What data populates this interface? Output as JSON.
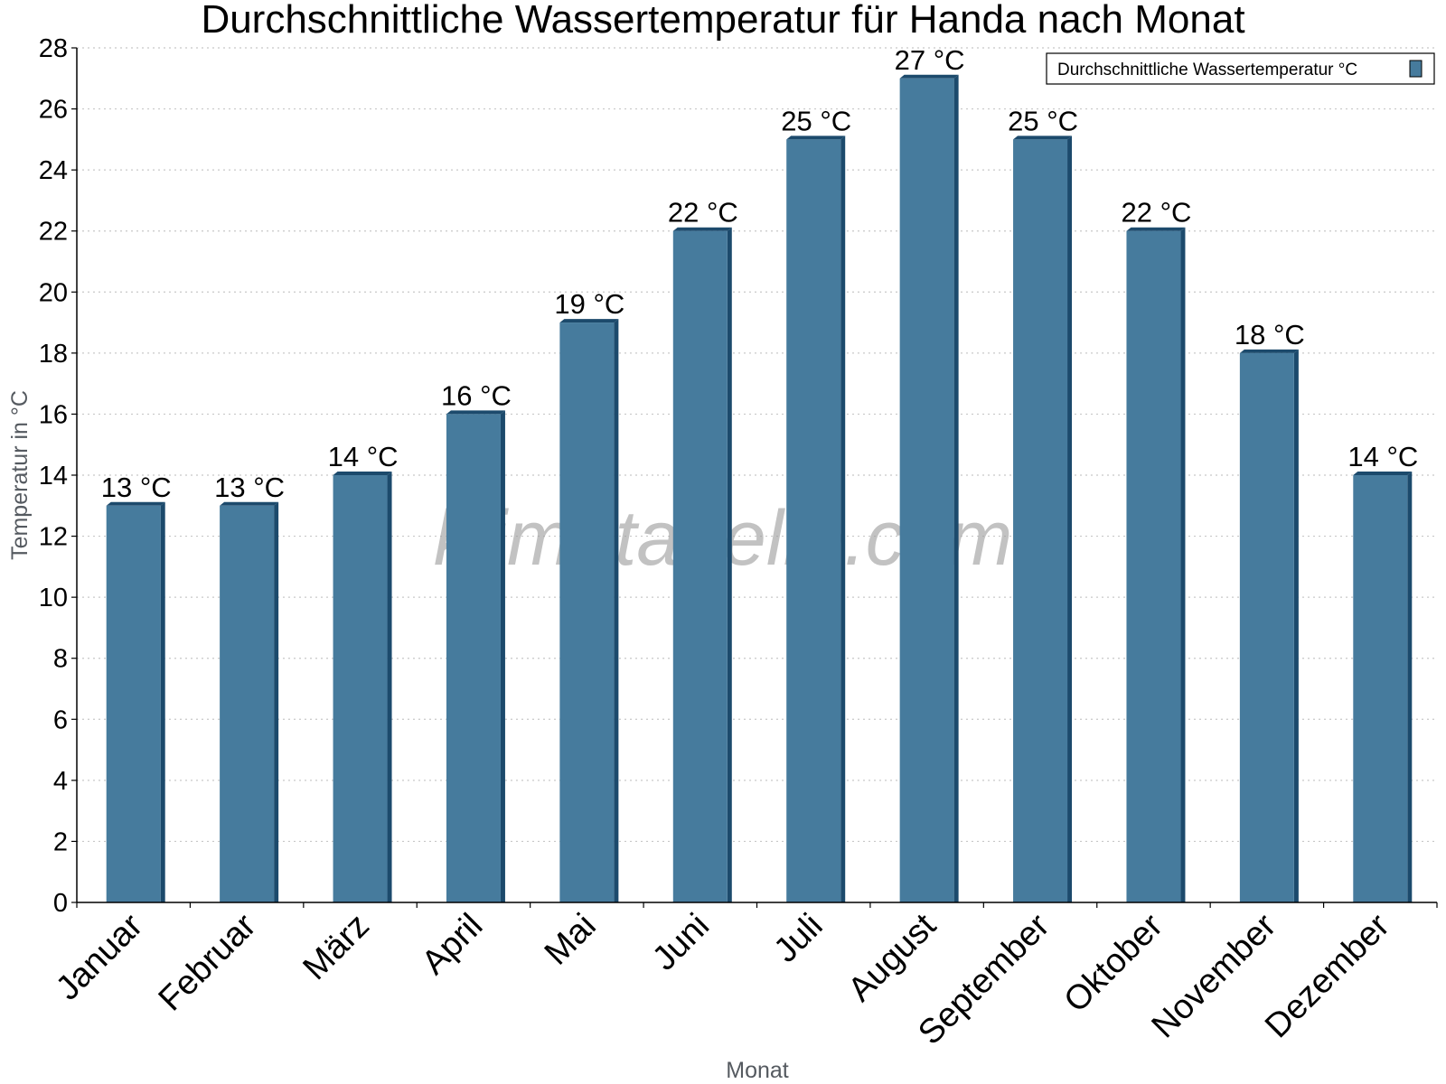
{
  "chart_data": {
    "type": "bar",
    "title": "Durchschnittliche Wassertemperatur für Handa nach Monat",
    "xlabel": "Monat",
    "ylabel": "Temperatur in °C",
    "categories": [
      "Januar",
      "Februar",
      "März",
      "April",
      "Mai",
      "Juni",
      "Juli",
      "August",
      "September",
      "Oktober",
      "November",
      "Dezember"
    ],
    "series": [
      {
        "name": "Durchschnittliche Wassertemperatur °C",
        "values": [
          13,
          13,
          14,
          16,
          19,
          22,
          25,
          27,
          25,
          22,
          18,
          14
        ],
        "color": "#467b9d",
        "dark_color": "#1c4a6c"
      }
    ],
    "data_labels": [
      "13 °C",
      "13 °C",
      "14 °C",
      "16 °C",
      "19 °C",
      "22 °C",
      "25 °C",
      "27 °C",
      "25 °C",
      "22 °C",
      "18 °C",
      "14 °C"
    ],
    "yticks": [
      "0",
      "2",
      "4",
      "6",
      "8",
      "10",
      "12",
      "14",
      "16",
      "18",
      "20",
      "22",
      "24",
      "26",
      "28"
    ],
    "ylim": [
      0,
      28
    ],
    "grid": "horizontal dotted",
    "legend_position": "top-right",
    "watermark": "klimatabelle.com"
  }
}
